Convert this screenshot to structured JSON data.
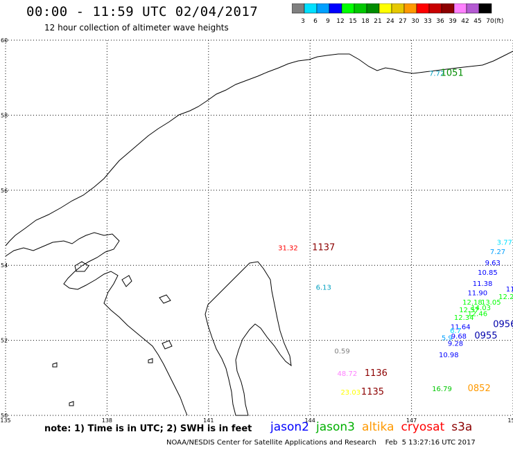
{
  "header": {
    "title": "00:00 - 11:59 UTC 02/04/2017",
    "subtitle": "12 hour collection of altimeter wave heights"
  },
  "color_scale": {
    "unit": "(ft)",
    "bins": [
      {
        "label": "3",
        "color": "#7f7f7f"
      },
      {
        "label": "6",
        "color": "#00e0ff"
      },
      {
        "label": "9",
        "color": "#00a0ff"
      },
      {
        "label": "12",
        "color": "#0000ff"
      },
      {
        "label": "15",
        "color": "#00ff00"
      },
      {
        "label": "18",
        "color": "#00c800"
      },
      {
        "label": "21",
        "color": "#008c00"
      },
      {
        "label": "24",
        "color": "#ffff00"
      },
      {
        "label": "27",
        "color": "#e6c800"
      },
      {
        "label": "30",
        "color": "#ff9900"
      },
      {
        "label": "33",
        "color": "#ff0000"
      },
      {
        "label": "36",
        "color": "#c80000"
      },
      {
        "label": "39",
        "color": "#8c0000"
      },
      {
        "label": "42",
        "color": "#ff80ff"
      },
      {
        "label": "45",
        "color": "#b45ad2"
      },
      {
        "label": "70",
        "color": "#000000"
      }
    ]
  },
  "map": {
    "lon_range": [
      135,
      150
    ],
    "lat_range": [
      50,
      60
    ],
    "lon_ticks": [
      "135",
      "138",
      "141",
      "144",
      "147",
      "150"
    ],
    "lat_ticks": [
      "50",
      "52",
      "54",
      "56",
      "58",
      "60"
    ],
    "grid": "dotted"
  },
  "observations": [
    {
      "text": "7.72",
      "lon": 147.75,
      "lat": 59.05,
      "color": "#00a0c0"
    },
    {
      "text": "31.32",
      "lon": 143.35,
      "lat": 54.4,
      "color": "#ff0000"
    },
    {
      "text": "6.13",
      "lon": 144.4,
      "lat": 53.35,
      "color": "#00a0c0"
    },
    {
      "text": "0.59",
      "lon": 144.95,
      "lat": 51.65,
      "color": "#7f7f7f"
    },
    {
      "text": "48.72",
      "lon": 145.1,
      "lat": 51.05,
      "color": "#ff80ff"
    },
    {
      "text": "23.03",
      "lon": 145.2,
      "lat": 50.55,
      "color": "#ffff00"
    },
    {
      "text": "16.79",
      "lon": 147.9,
      "lat": 50.65,
      "color": "#00c800"
    },
    {
      "text": "3.77",
      "lon": 149.75,
      "lat": 54.55,
      "color": "#00e0ff"
    },
    {
      "text": "7.27",
      "lon": 149.55,
      "lat": 54.3,
      "color": "#00a0ff"
    },
    {
      "text": "9.63",
      "lon": 149.4,
      "lat": 54.0,
      "color": "#0000ff"
    },
    {
      "text": "10.85",
      "lon": 149.25,
      "lat": 53.75,
      "color": "#0000ff"
    },
    {
      "text": "11.38",
      "lon": 149.1,
      "lat": 53.45,
      "color": "#0000ff"
    },
    {
      "text": "11.90",
      "lon": 148.95,
      "lat": 53.2,
      "color": "#0000ff"
    },
    {
      "text": "12.2",
      "lon": 149.8,
      "lat": 53.1,
      "color": "#00ff00"
    },
    {
      "text": "12.18",
      "lon": 148.8,
      "lat": 52.95,
      "color": "#00ff00"
    },
    {
      "text": "13.05",
      "lon": 149.35,
      "lat": 52.95,
      "color": "#00ff00"
    },
    {
      "text": "12.57",
      "lon": 148.7,
      "lat": 52.75,
      "color": "#00ff00"
    },
    {
      "text": "14.03",
      "lon": 149.05,
      "lat": 52.8,
      "color": "#00ff00"
    },
    {
      "text": "12.46",
      "lon": 148.95,
      "lat": 52.65,
      "color": "#00ff00"
    },
    {
      "text": "12.34",
      "lon": 148.55,
      "lat": 52.55,
      "color": "#00ff00"
    },
    {
      "text": "11.64",
      "lon": 148.45,
      "lat": 52.3,
      "color": "#0000ff"
    },
    {
      "text": "6.7",
      "lon": 148.3,
      "lat": 52.2,
      "color": "#00e0ff"
    },
    {
      "text": "5.9",
      "lon": 148.05,
      "lat": 52.0,
      "color": "#00a0ff"
    },
    {
      "text": "9.68",
      "lon": 148.4,
      "lat": 52.05,
      "color": "#0000ff"
    },
    {
      "text": "9.28",
      "lon": 148.3,
      "lat": 51.85,
      "color": "#0000ff"
    },
    {
      "text": "10.98",
      "lon": 148.1,
      "lat": 51.55,
      "color": "#0000ff"
    },
    {
      "text": "11",
      "lon": 149.92,
      "lat": 53.3,
      "color": "#0000ff"
    }
  ],
  "pass_times": [
    {
      "text": "1051",
      "lon": 148.2,
      "lat": 59.05,
      "color": "#008c00"
    },
    {
      "text": "1137",
      "lon": 144.4,
      "lat": 54.4,
      "color": "#8c0000"
    },
    {
      "text": "1136",
      "lon": 145.95,
      "lat": 51.05,
      "color": "#8c0000"
    },
    {
      "text": "1135",
      "lon": 145.85,
      "lat": 50.55,
      "color": "#8c0000"
    },
    {
      "text": "0852",
      "lon": 149.0,
      "lat": 50.65,
      "color": "#ff9900"
    },
    {
      "text": "0956",
      "lon": 149.75,
      "lat": 52.35,
      "color": "#0000aa"
    },
    {
      "text": "0955",
      "lon": 149.2,
      "lat": 52.05,
      "color": "#0000aa"
    }
  ],
  "footer": {
    "note": "note: 1) Time is in UTC; 2) SWH is in feet",
    "satellites": [
      {
        "label": "jason2",
        "color": "#0000ff"
      },
      {
        "label": "jason3",
        "color": "#00b000"
      },
      {
        "label": "altika",
        "color": "#ff9900"
      },
      {
        "label": "cryosat",
        "color": "#ff0000"
      },
      {
        "label": "s3a",
        "color": "#8c0000"
      }
    ],
    "credit": "NOAA/NESDIS Center for Satellite Applications and Research    Feb  5 13:27:16 UTC 2017"
  }
}
